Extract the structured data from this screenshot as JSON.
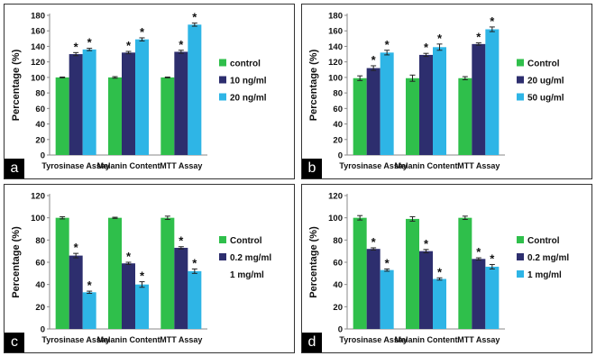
{
  "colors": {
    "control": "#2fbf4b",
    "mid": "#2d2e6e",
    "high": "#2eb5e6"
  },
  "chart_data": [
    {
      "type": "bar",
      "panel_label": "a",
      "categories": [
        "Tyrosinase Assay",
        "Melanin Content",
        "MTT Assay"
      ],
      "ylabel": "Percentage (%)",
      "ylim": [
        0,
        180
      ],
      "yticks": [
        0,
        20,
        40,
        60,
        80,
        100,
        120,
        140,
        160,
        180
      ],
      "series": [
        {
          "name": "control",
          "values": [
            100,
            100,
            100
          ],
          "errors": [
            0.5,
            1,
            0.5
          ],
          "sig": [
            false,
            false,
            false
          ]
        },
        {
          "name": "10 ng/ml",
          "values": [
            130,
            132,
            133
          ],
          "errors": [
            2,
            1.5,
            2
          ],
          "sig": [
            true,
            true,
            true
          ]
        },
        {
          "name": "20 ng/ml",
          "values": [
            136,
            149,
            168
          ],
          "errors": [
            1.5,
            2,
            2
          ],
          "sig": [
            true,
            true,
            true
          ]
        }
      ]
    },
    {
      "type": "bar",
      "panel_label": "b",
      "categories": [
        "Tyrosinase Assay",
        "Melanin Content",
        "MTT Assay"
      ],
      "ylabel": "Percentage (%)",
      "ylim": [
        0,
        180
      ],
      "yticks": [
        0,
        20,
        40,
        60,
        80,
        100,
        120,
        140,
        160,
        180
      ],
      "series": [
        {
          "name": "Control",
          "values": [
            99,
            99,
            99
          ],
          "errors": [
            3,
            4,
            2
          ],
          "sig": [
            false,
            false,
            false
          ]
        },
        {
          "name": "20 ug/ml",
          "values": [
            112,
            129,
            143
          ],
          "errors": [
            3,
            2,
            1.5
          ],
          "sig": [
            true,
            true,
            true
          ]
        },
        {
          "name": "50 ug/ml",
          "values": [
            132,
            139,
            162
          ],
          "errors": [
            3,
            4,
            3
          ],
          "sig": [
            true,
            true,
            true
          ]
        }
      ]
    },
    {
      "type": "bar",
      "panel_label": "c",
      "categories": [
        "Tyrosinase Assay",
        "Melanin Content",
        "MTT Assay"
      ],
      "ylabel": "Percentage (%)",
      "ylim": [
        0,
        120
      ],
      "yticks": [
        0,
        20,
        40,
        60,
        80,
        100,
        120
      ],
      "series": [
        {
          "name": "Control",
          "values": [
            100,
            100,
            100
          ],
          "errors": [
            1,
            0.5,
            1.5
          ],
          "sig": [
            false,
            false,
            false
          ]
        },
        {
          "name": "0.2 mg/ml",
          "values": [
            66,
            59,
            73
          ],
          "errors": [
            2,
            1,
            1
          ],
          "sig": [
            true,
            true,
            true
          ]
        },
        {
          "name": "1 mg/ml",
          "values": [
            33,
            40,
            52
          ],
          "errors": [
            1,
            2.5,
            2
          ],
          "sig": [
            true,
            true,
            true
          ]
        }
      ]
    },
    {
      "type": "bar",
      "panel_label": "d",
      "categories": [
        "Tyrosinase Assay",
        "Melanin Content",
        "MTT Assay"
      ],
      "ylabel": "Percentage (%)",
      "ylim": [
        0,
        120
      ],
      "yticks": [
        0,
        20,
        40,
        60,
        80,
        100,
        120
      ],
      "series": [
        {
          "name": "Control",
          "values": [
            100,
            99,
            100
          ],
          "errors": [
            2,
            2,
            1.5
          ],
          "sig": [
            false,
            false,
            false
          ]
        },
        {
          "name": "0.2 mg/ml",
          "values": [
            72,
            70,
            63
          ],
          "errors": [
            1,
            1.5,
            1
          ],
          "sig": [
            true,
            true,
            true
          ]
        },
        {
          "name": "1 mg/ml",
          "values": [
            53,
            45,
            56
          ],
          "errors": [
            1,
            1,
            2
          ],
          "sig": [
            true,
            true,
            true
          ]
        }
      ]
    }
  ]
}
